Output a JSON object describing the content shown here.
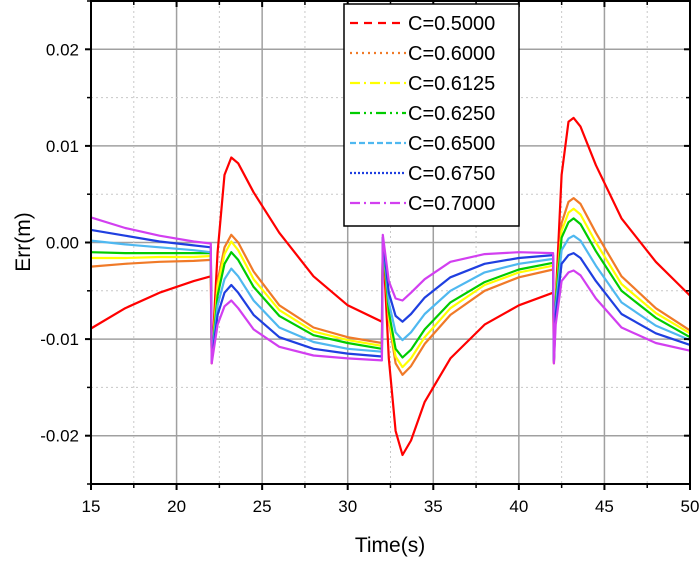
{
  "chart_data": {
    "type": "line",
    "title": "",
    "xlabel": "Time(s)",
    "ylabel": "Err(m)",
    "xlim": [
      15,
      50
    ],
    "ylim": [
      -0.025,
      0.025
    ],
    "xticks": [
      15,
      20,
      25,
      30,
      35,
      40,
      45,
      50
    ],
    "xtick_labels": [
      "15",
      "20",
      "25",
      "30",
      "35",
      "40",
      "45",
      "50"
    ],
    "yticks": [
      -0.02,
      -0.01,
      0.0,
      0.01,
      0.02
    ],
    "ytick_labels": [
      "-0.02",
      "-0.01",
      "0.00",
      "0.01",
      "0.02"
    ],
    "grid": true,
    "legend_position": "top-right",
    "series": [
      {
        "name": "C=0.5000",
        "color": "#ff0000",
        "dash": "8,6",
        "x": [
          15,
          17,
          19,
          21,
          22.0,
          22.05,
          22.4,
          22.8,
          23.2,
          23.6,
          24.5,
          26,
          28,
          30,
          32.0,
          32.05,
          32.4,
          32.8,
          33.2,
          33.7,
          34.5,
          36,
          38,
          40,
          42.0,
          42.05,
          42.15,
          42.5,
          42.9,
          43.2,
          43.6,
          44.5,
          46,
          48,
          50
        ],
        "y": [
          -0.0089,
          -0.0068,
          -0.0052,
          -0.004,
          -0.0035,
          -0.0125,
          -0.001,
          0.007,
          0.0088,
          0.0082,
          0.0052,
          0.001,
          -0.0035,
          -0.0065,
          -0.0082,
          0.0005,
          -0.012,
          -0.0195,
          -0.022,
          -0.0205,
          -0.0165,
          -0.012,
          -0.0085,
          -0.0065,
          -0.0052,
          -0.0125,
          -0.006,
          0.007,
          0.0125,
          0.0129,
          0.012,
          0.008,
          0.0025,
          -0.002,
          -0.0055
        ]
      },
      {
        "name": "C=0.6000",
        "color": "#f07a28",
        "dash": "2,4",
        "x": [
          15,
          17,
          19,
          21,
          22.0,
          22.05,
          22.4,
          22.8,
          23.2,
          23.6,
          24.5,
          26,
          28,
          30,
          32.0,
          32.05,
          32.4,
          32.8,
          33.2,
          33.7,
          34.5,
          36,
          38,
          40,
          42.0,
          42.05,
          42.15,
          42.5,
          42.9,
          43.2,
          43.6,
          44.5,
          46,
          48,
          50
        ],
        "y": [
          -0.0025,
          -0.0022,
          -0.002,
          -0.0019,
          -0.0018,
          -0.012,
          -0.004,
          -0.0005,
          0.0008,
          0.0,
          -0.003,
          -0.0065,
          -0.0088,
          -0.0098,
          -0.0104,
          0.0005,
          -0.008,
          -0.0125,
          -0.0137,
          -0.0128,
          -0.0105,
          -0.0075,
          -0.005,
          -0.0036,
          -0.0028,
          -0.012,
          -0.006,
          0.002,
          0.0042,
          0.0046,
          0.004,
          0.001,
          -0.0035,
          -0.0068,
          -0.0091
        ]
      },
      {
        "name": "C=0.6125",
        "color": "#ffff00",
        "dash": "10,4,2,4",
        "x": [
          15,
          17,
          19,
          21,
          22.0,
          22.05,
          22.4,
          22.8,
          23.2,
          23.6,
          24.5,
          26,
          28,
          30,
          32.0,
          32.05,
          32.4,
          32.8,
          33.2,
          33.7,
          34.5,
          36,
          38,
          40,
          42.0,
          42.05,
          42.15,
          42.5,
          42.9,
          43.2,
          43.6,
          44.5,
          46,
          48,
          50
        ],
        "y": [
          -0.0016,
          -0.0016,
          -0.0015,
          -0.0015,
          -0.0014,
          -0.012,
          -0.0045,
          -0.0012,
          0.0001,
          -0.0008,
          -0.0038,
          -0.007,
          -0.0092,
          -0.0101,
          -0.0107,
          0.0005,
          -0.0078,
          -0.0118,
          -0.0129,
          -0.012,
          -0.0098,
          -0.0068,
          -0.0044,
          -0.0031,
          -0.0024,
          -0.012,
          -0.006,
          0.0012,
          0.0031,
          0.0035,
          0.0029,
          0.0,
          -0.0043,
          -0.0073,
          -0.0094
        ]
      },
      {
        "name": "C=0.6250",
        "color": "#00cc00",
        "dash": "10,4,2,4,2,4",
        "x": [
          15,
          17,
          19,
          21,
          22.0,
          22.05,
          22.4,
          22.8,
          23.2,
          23.6,
          24.5,
          26,
          28,
          30,
          32.0,
          32.05,
          32.4,
          32.8,
          33.2,
          33.7,
          34.5,
          36,
          38,
          40,
          42.0,
          42.05,
          42.15,
          42.5,
          42.9,
          43.2,
          43.6,
          44.5,
          46,
          48,
          50
        ],
        "y": [
          -0.001,
          -0.0011,
          -0.0011,
          -0.0011,
          -0.0011,
          -0.0121,
          -0.0055,
          -0.0022,
          -0.001,
          -0.0018,
          -0.0046,
          -0.0076,
          -0.0096,
          -0.0104,
          -0.011,
          0.0005,
          -0.0072,
          -0.011,
          -0.0119,
          -0.0111,
          -0.009,
          -0.0062,
          -0.0041,
          -0.0028,
          -0.0021,
          -0.0121,
          -0.0062,
          0.0005,
          0.0021,
          0.0025,
          0.0019,
          -0.0009,
          -0.005,
          -0.0078,
          -0.0098
        ]
      },
      {
        "name": "C=0.6500",
        "color": "#4fb8f0",
        "dash": "6,3",
        "x": [
          15,
          17,
          19,
          21,
          22.0,
          22.05,
          22.4,
          22.8,
          23.2,
          23.6,
          24.5,
          26,
          28,
          30,
          32.0,
          32.05,
          32.4,
          32.8,
          33.2,
          33.7,
          34.5,
          36,
          38,
          40,
          42.0,
          42.05,
          42.15,
          42.5,
          42.9,
          43.2,
          43.6,
          44.5,
          46,
          48,
          50
        ],
        "y": [
          0.0002,
          -0.0002,
          -0.0005,
          -0.0008,
          -0.001,
          -0.0122,
          -0.0065,
          -0.0038,
          -0.0027,
          -0.0035,
          -0.006,
          -0.0088,
          -0.0103,
          -0.011,
          -0.0113,
          0.0005,
          -0.0062,
          -0.0093,
          -0.0101,
          -0.0093,
          -0.0074,
          -0.005,
          -0.0031,
          -0.0022,
          -0.0017,
          -0.0122,
          -0.0068,
          -0.0008,
          0.0004,
          0.0007,
          0.0002,
          -0.0024,
          -0.0062,
          -0.0086,
          -0.0101
        ]
      },
      {
        "name": "C=0.6750",
        "color": "#1f3fe0",
        "dash": "2,2",
        "x": [
          15,
          17,
          19,
          21,
          22.0,
          22.05,
          22.4,
          22.8,
          23.2,
          23.6,
          24.5,
          26,
          28,
          30,
          32.0,
          32.05,
          32.4,
          32.8,
          33.2,
          33.7,
          34.5,
          36,
          38,
          40,
          42.0,
          42.05,
          42.15,
          42.5,
          42.9,
          43.2,
          43.6,
          44.5,
          46,
          48,
          50
        ],
        "y": [
          0.0013,
          0.0007,
          0.0001,
          -0.0003,
          -0.0005,
          -0.0123,
          -0.0075,
          -0.0052,
          -0.0044,
          -0.0052,
          -0.0075,
          -0.0098,
          -0.011,
          -0.0115,
          -0.0118,
          0.0005,
          -0.0052,
          -0.0076,
          -0.0082,
          -0.0074,
          -0.0057,
          -0.0036,
          -0.0022,
          -0.0016,
          -0.0013,
          -0.0123,
          -0.0075,
          -0.0022,
          -0.0013,
          -0.0011,
          -0.0016,
          -0.004,
          -0.0074,
          -0.0094,
          -0.0106
        ]
      },
      {
        "name": "C=0.7000",
        "color": "#d23ff0",
        "dash": "10,4,2,4",
        "x": [
          15,
          17,
          19,
          21,
          22.0,
          22.05,
          22.4,
          22.8,
          23.2,
          23.6,
          24.5,
          26,
          28,
          30,
          32.0,
          32.05,
          32.4,
          32.8,
          33.2,
          33.7,
          34.5,
          36,
          38,
          40,
          42.0,
          42.05,
          42.15,
          42.5,
          42.9,
          43.2,
          43.6,
          44.5,
          46,
          48,
          50
        ],
        "y": [
          0.0026,
          0.0015,
          0.0007,
          0.0001,
          -0.0001,
          -0.0125,
          -0.0085,
          -0.0066,
          -0.006,
          -0.0068,
          -0.009,
          -0.0108,
          -0.0117,
          -0.012,
          -0.0122,
          0.0008,
          -0.004,
          -0.0058,
          -0.006,
          -0.0052,
          -0.0038,
          -0.002,
          -0.0012,
          -0.001,
          -0.0011,
          -0.0125,
          -0.0085,
          -0.004,
          -0.0031,
          -0.0029,
          -0.0034,
          -0.0058,
          -0.0088,
          -0.0104,
          -0.0112
        ]
      }
    ]
  }
}
